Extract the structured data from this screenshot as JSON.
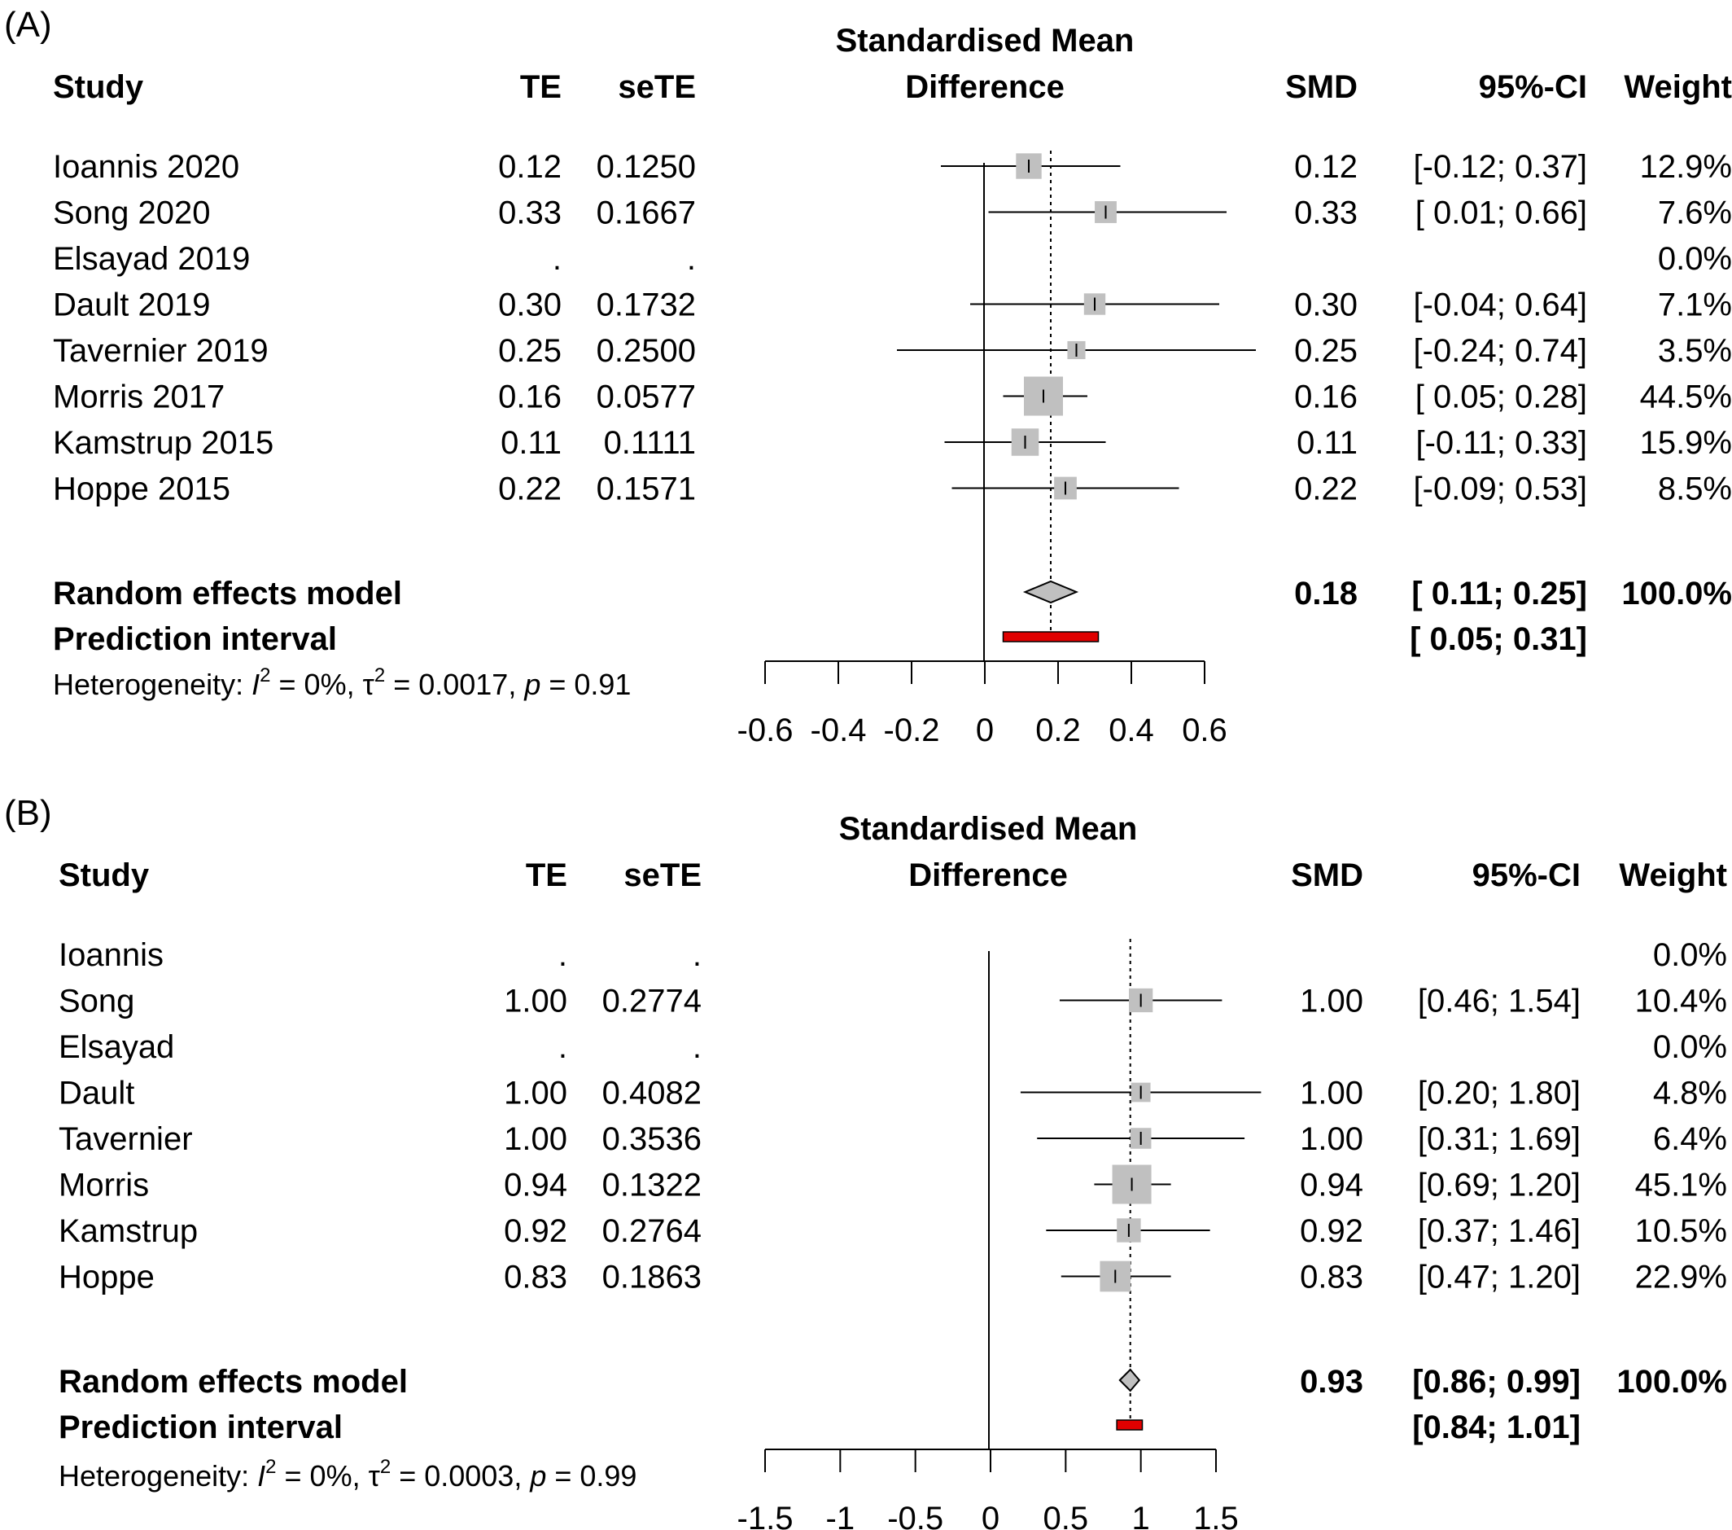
{
  "chart_data": [
    {
      "type": "forest",
      "panel_label": "(A)",
      "title_lines": [
        "Standardised Mean",
        "Difference"
      ],
      "columns": {
        "study": "Study",
        "te": "TE",
        "sete": "seTE",
        "smd": "SMD",
        "ci": "95%-CI",
        "weight": "Weight"
      },
      "xlim": [
        -0.6,
        0.6
      ],
      "ticks": [
        -0.6,
        -0.4,
        -0.2,
        0,
        0.2,
        0.4,
        0.6
      ],
      "tick_labels": [
        "-0.6",
        "-0.4",
        "-0.2",
        "0",
        "0.2",
        "0.4",
        "0.6"
      ],
      "studies": [
        {
          "name": "Ioannis 2020",
          "te": "0.12",
          "sete": "0.1250",
          "smd": "0.12",
          "ci": "[-0.12; 0.37]",
          "weight": "12.9%",
          "est": 0.12,
          "lo": -0.12,
          "hi": 0.37,
          "w": 12.9
        },
        {
          "name": "Song 2020",
          "te": "0.33",
          "sete": "0.1667",
          "smd": "0.33",
          "ci": "[ 0.01; 0.66]",
          "weight": "7.6%",
          "est": 0.33,
          "lo": 0.01,
          "hi": 0.66,
          "w": 7.6
        },
        {
          "name": "Elsayad 2019",
          "te": ".",
          "sete": ".",
          "smd": "",
          "ci": "",
          "weight": "0.0%",
          "est": null,
          "lo": null,
          "hi": null,
          "w": 0
        },
        {
          "name": "Dault 2019",
          "te": "0.30",
          "sete": "0.1732",
          "smd": "0.30",
          "ci": "[-0.04; 0.64]",
          "weight": "7.1%",
          "est": 0.3,
          "lo": -0.04,
          "hi": 0.64,
          "w": 7.1
        },
        {
          "name": "Tavernier 2019",
          "te": "0.25",
          "sete": "0.2500",
          "smd": "0.25",
          "ci": "[-0.24; 0.74]",
          "weight": "3.5%",
          "est": 0.25,
          "lo": -0.24,
          "hi": 0.74,
          "w": 3.5
        },
        {
          "name": "Morris 2017",
          "te": "0.16",
          "sete": "0.0577",
          "smd": "0.16",
          "ci": "[ 0.05; 0.28]",
          "weight": "44.5%",
          "est": 0.16,
          "lo": 0.05,
          "hi": 0.28,
          "w": 44.5
        },
        {
          "name": "Kamstrup 2015",
          "te": "0.11",
          "sete": "0.1111",
          "smd": "0.11",
          "ci": "[-0.11; 0.33]",
          "weight": "15.9%",
          "est": 0.11,
          "lo": -0.11,
          "hi": 0.33,
          "w": 15.9
        },
        {
          "name": "Hoppe 2015",
          "te": "0.22",
          "sete": "0.1571",
          "smd": "0.22",
          "ci": "[-0.09; 0.53]",
          "weight": "8.5%",
          "est": 0.22,
          "lo": -0.09,
          "hi": 0.53,
          "w": 8.5
        }
      ],
      "random_effects": {
        "label": "Random effects model",
        "smd": "0.18",
        "ci": "[ 0.11; 0.25]",
        "weight": "100.0%",
        "est": 0.18,
        "lo": 0.11,
        "hi": 0.25
      },
      "prediction": {
        "label": "Prediction interval",
        "ci": "[ 0.05; 0.31]",
        "lo": 0.05,
        "hi": 0.31
      },
      "heterogeneity": {
        "prefix": "Heterogeneity: ",
        "i2": "I",
        "i2_rest": " = 0%, ",
        "tau": "τ",
        "tau_rest": " = 0.0017, ",
        "p": "p",
        "p_rest": " = 0.91"
      },
      "colors": {
        "square": "#c0c0c0",
        "diamond": "#c0c0c0",
        "prediction": "#e00000"
      }
    },
    {
      "type": "forest",
      "panel_label": "(B)",
      "title_lines": [
        "Standardised Mean",
        "Difference"
      ],
      "columns": {
        "study": "Study",
        "te": "TE",
        "sete": "seTE",
        "smd": "SMD",
        "ci": "95%-CI",
        "weight": "Weight"
      },
      "xlim": [
        -1.5,
        1.5
      ],
      "ticks": [
        -1.5,
        -1,
        -0.5,
        0,
        0.5,
        1,
        1.5
      ],
      "tick_labels": [
        "-1.5",
        "-1",
        "-0.5",
        "0",
        "0.5",
        "1",
        "1.5"
      ],
      "studies": [
        {
          "name": "Ioannis",
          "te": ".",
          "sete": ".",
          "smd": "",
          "ci": "",
          "weight": "0.0%",
          "est": null,
          "lo": null,
          "hi": null,
          "w": 0
        },
        {
          "name": "Song",
          "te": "1.00",
          "sete": "0.2774",
          "smd": "1.00",
          "ci": "[0.46; 1.54]",
          "weight": "10.4%",
          "est": 1.0,
          "lo": 0.46,
          "hi": 1.54,
          "w": 10.4
        },
        {
          "name": "Elsayad",
          "te": ".",
          "sete": ".",
          "smd": "",
          "ci": "",
          "weight": "0.0%",
          "est": null,
          "lo": null,
          "hi": null,
          "w": 0
        },
        {
          "name": "Dault",
          "te": "1.00",
          "sete": "0.4082",
          "smd": "1.00",
          "ci": "[0.20; 1.80]",
          "weight": "4.8%",
          "est": 1.0,
          "lo": 0.2,
          "hi": 1.8,
          "w": 4.8
        },
        {
          "name": "Tavernier",
          "te": "1.00",
          "sete": "0.3536",
          "smd": "1.00",
          "ci": "[0.31; 1.69]",
          "weight": "6.4%",
          "est": 1.0,
          "lo": 0.31,
          "hi": 1.69,
          "w": 6.4
        },
        {
          "name": "Morris",
          "te": "0.94",
          "sete": "0.1322",
          "smd": "0.94",
          "ci": "[0.69; 1.20]",
          "weight": "45.1%",
          "est": 0.94,
          "lo": 0.69,
          "hi": 1.2,
          "w": 45.1
        },
        {
          "name": "Kamstrup",
          "te": "0.92",
          "sete": "0.2764",
          "smd": "0.92",
          "ci": "[0.37; 1.46]",
          "weight": "10.5%",
          "est": 0.92,
          "lo": 0.37,
          "hi": 1.46,
          "w": 10.5
        },
        {
          "name": "Hoppe",
          "te": "0.83",
          "sete": "0.1863",
          "smd": "0.83",
          "ci": "[0.47; 1.20]",
          "weight": "22.9%",
          "est": 0.83,
          "lo": 0.47,
          "hi": 1.2,
          "w": 22.9
        }
      ],
      "random_effects": {
        "label": "Random effects model",
        "smd": "0.93",
        "ci": "[0.86; 0.99]",
        "weight": "100.0%",
        "est": 0.93,
        "lo": 0.86,
        "hi": 0.99
      },
      "prediction": {
        "label": "Prediction interval",
        "ci": "[0.84; 1.01]",
        "lo": 0.84,
        "hi": 1.01
      },
      "heterogeneity": {
        "prefix": "Heterogeneity: ",
        "i2": "I",
        "i2_rest": " = 0%, ",
        "tau": "τ",
        "tau_rest": " = 0.0003, ",
        "p": "p",
        "p_rest": " = 0.99"
      },
      "colors": {
        "square": "#c0c0c0",
        "diamond": "#c0c0c0",
        "prediction": "#e00000"
      }
    }
  ]
}
